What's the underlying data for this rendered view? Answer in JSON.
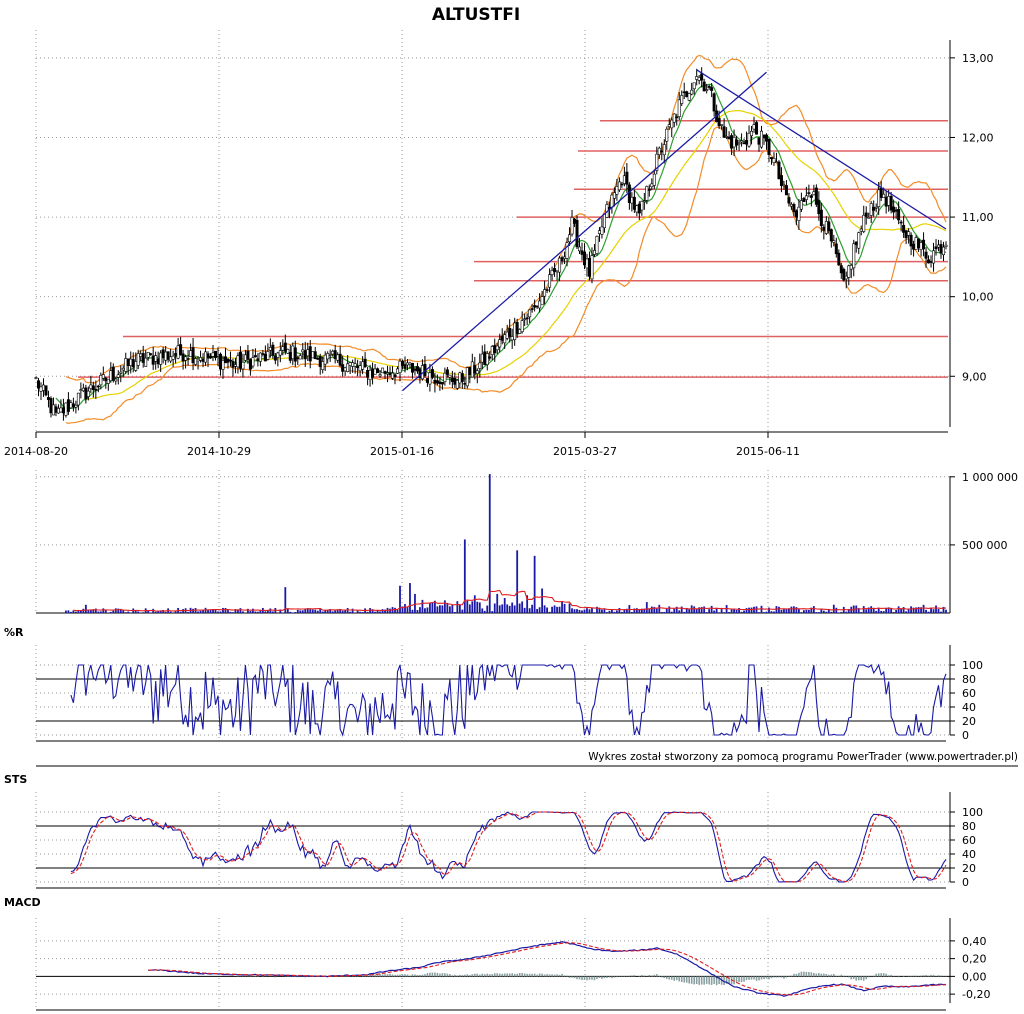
{
  "title": "ALTUSTFI",
  "credit": "Wykres został stworzony za pomocą programu PowerTrader (www.powertrader.pl)",
  "colors": {
    "candle_up": "#ffffff",
    "candle_down": "#000000",
    "bollinger": "#f28c28",
    "sma_short": "#2e9e2e",
    "sma_long": "#e6d200",
    "trendline": "#1a1aa6",
    "support_resistance": "#e06060",
    "volume_bar": "#1a1aa6",
    "volume_avg": "#e02020",
    "line_blue": "#1a1aa6",
    "line_red_dashed": "#e02020",
    "histogram": "#8aa0a0",
    "grid": "#9a9a9a"
  },
  "chart_data": [
    {
      "panel": "price",
      "type": "candlestick",
      "title": "ALTUSTFI",
      "x_ticks": [
        "2014-08-20",
        "2014-10-29",
        "2015-01-16",
        "2015-03-27",
        "2015-06-11"
      ],
      "y_ticks": [
        "9,00",
        "10,00",
        "11,00",
        "12,00",
        "13,00"
      ],
      "ylim": [
        8.3,
        13.35
      ],
      "grid": true,
      "close_path": [
        [
          0,
          8.95
        ],
        [
          8,
          8.5
        ],
        [
          20,
          8.8
        ],
        [
          40,
          9.2
        ],
        [
          60,
          9.3
        ],
        [
          80,
          9.15
        ],
        [
          100,
          9.3
        ],
        [
          120,
          9.2
        ],
        [
          135,
          9.05
        ],
        [
          150,
          9.1
        ],
        [
          160,
          9.0
        ],
        [
          170,
          8.95
        ],
        [
          180,
          9.2
        ],
        [
          190,
          9.55
        ],
        [
          200,
          9.85
        ],
        [
          210,
          10.4
        ],
        [
          215,
          10.9
        ],
        [
          222,
          10.3
        ],
        [
          228,
          11.0
        ],
        [
          235,
          11.5
        ],
        [
          242,
          11.0
        ],
        [
          250,
          11.8
        ],
        [
          258,
          12.4
        ],
        [
          265,
          12.8
        ],
        [
          270,
          12.6
        ],
        [
          276,
          12.0
        ],
        [
          282,
          11.9
        ],
        [
          288,
          12.1
        ],
        [
          295,
          11.8
        ],
        [
          300,
          11.3
        ],
        [
          305,
          11.0
        ],
        [
          310,
          11.4
        ],
        [
          315,
          11.0
        ],
        [
          320,
          10.6
        ],
        [
          324,
          10.1
        ],
        [
          328,
          10.6
        ],
        [
          334,
          11.1
        ],
        [
          340,
          11.3
        ],
        [
          346,
          10.9
        ],
        [
          352,
          10.7
        ],
        [
          358,
          10.5
        ],
        [
          365,
          10.7
        ]
      ],
      "horizontal_levels": [
        8.99,
        9.5,
        10.2,
        10.44,
        11.0,
        11.35,
        11.83,
        12.21
      ],
      "trendlines": [
        {
          "from": [
            147,
            8.82
          ],
          "to": [
            293,
            12.82
          ]
        },
        {
          "from": [
            265,
            12.85
          ],
          "to": [
            365,
            10.85
          ]
        }
      ],
      "series": [
        {
          "values": []
        },
        {
          "values": []
        },
        {
          "values": []
        }
      ]
    },
    {
      "panel": "volume",
      "type": "bar",
      "y_ticks": [
        "500 000",
        "1 000 000"
      ],
      "ylim": [
        0,
        1050000
      ],
      "spikes": [
        [
          20,
          60000
        ],
        [
          100,
          190000
        ],
        [
          146,
          200000
        ],
        [
          150,
          220000
        ],
        [
          152,
          140000
        ],
        [
          160,
          90000
        ],
        [
          172,
          540000
        ],
        [
          176,
          130000
        ],
        [
          182,
          1020000
        ],
        [
          185,
          140000
        ],
        [
          188,
          110000
        ],
        [
          193,
          460000
        ],
        [
          197,
          130000
        ],
        [
          200,
          420000
        ],
        [
          203,
          180000
        ],
        [
          245,
          80000
        ],
        [
          250,
          60000
        ],
        [
          335,
          50000
        ],
        [
          356,
          60000
        ]
      ]
    },
    {
      "panel": "williams_r",
      "type": "line",
      "label": "%R",
      "y_ticks": [
        "0",
        "20",
        "40",
        "60",
        "80",
        "100"
      ],
      "ylim": [
        0,
        100
      ],
      "reference_lines": [
        20,
        80
      ]
    },
    {
      "panel": "stochastic",
      "type": "line",
      "label": "STS",
      "y_ticks": [
        "0",
        "20",
        "40",
        "60",
        "80",
        "100"
      ],
      "ylim": [
        0,
        100
      ],
      "reference_lines": [
        20,
        80
      ]
    },
    {
      "panel": "macd",
      "type": "line",
      "label": "MACD",
      "y_ticks": [
        "-0,20",
        "0,00",
        "0,20",
        "0,40"
      ],
      "ylim": [
        -0.3,
        0.5
      ],
      "macd_path": [
        [
          36,
          0.07
        ],
        [
          60,
          0.07
        ],
        [
          80,
          0.03
        ],
        [
          100,
          0.02
        ],
        [
          120,
          0.01
        ],
        [
          140,
          0.0
        ],
        [
          160,
          0.02
        ],
        [
          170,
          0.06
        ],
        [
          185,
          0.1
        ],
        [
          195,
          0.16
        ],
        [
          210,
          0.2
        ],
        [
          225,
          0.27
        ],
        [
          240,
          0.34
        ],
        [
          255,
          0.39
        ],
        [
          268,
          0.31
        ],
        [
          280,
          0.28
        ],
        [
          295,
          0.3
        ],
        [
          300,
          0.32
        ],
        [
          310,
          0.25
        ],
        [
          320,
          0.12
        ],
        [
          330,
          -0.02
        ],
        [
          338,
          -0.12
        ],
        [
          350,
          -0.19
        ],
        [
          362,
          -0.22
        ],
        [
          372,
          -0.15
        ],
        [
          382,
          -0.1
        ],
        [
          390,
          -0.09
        ],
        [
          400,
          -0.16
        ],
        [
          410,
          -0.11
        ],
        [
          420,
          -0.12
        ],
        [
          430,
          -0.1
        ],
        [
          440,
          -0.09
        ]
      ]
    }
  ]
}
